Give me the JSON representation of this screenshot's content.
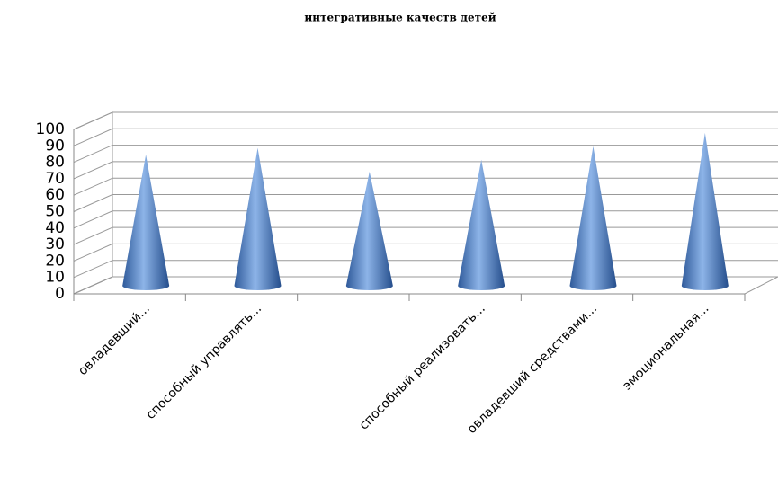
{
  "chart_data": {
    "type": "cone",
    "title": "интегративные качеств детей",
    "categories": [
      "овладевший...",
      "способный управлять...",
      null,
      "способный реализовать...",
      "овладевший средствами...",
      "эмоциональная..."
    ],
    "values": [
      78,
      82,
      68,
      75,
      83,
      91
    ],
    "color": "#4f81bd",
    "ylim": [
      0,
      100
    ],
    "yticks": [
      0,
      10,
      20,
      30,
      40,
      50,
      60,
      70,
      80,
      90,
      100
    ],
    "grid": true
  }
}
